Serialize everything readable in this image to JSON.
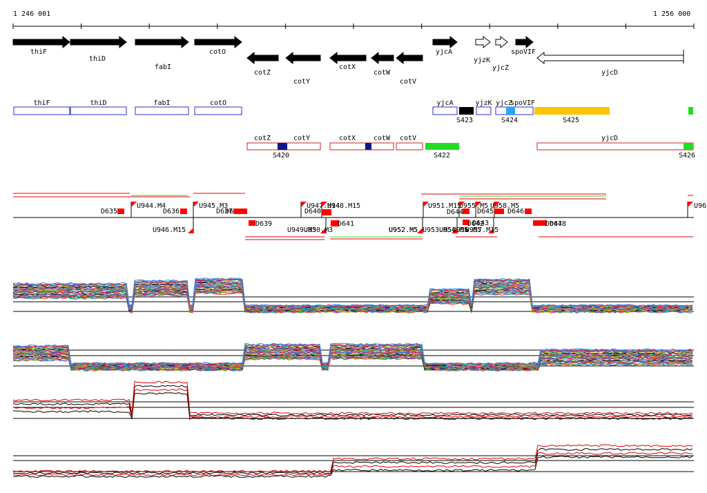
{
  "ruler": {
    "start_label": "1 246 001",
    "end_label": "1 256 000"
  },
  "colors": {
    "gene_fill": "#000000",
    "gene_outline": "#000000",
    "forward_box": "#2b2bd4",
    "reverse_box": "#cc2222",
    "segment_green": "#22dd22",
    "segment_navy": "#0a1a8c",
    "segment_orange": "#ffc400",
    "segment_cyan": "#26a6ff",
    "segment_black": "#000000",
    "feature_red": "#ff0000",
    "trace_black": "#000000",
    "trace_red": "#e00000"
  },
  "genes": [
    {
      "name": "thiF",
      "strand": "+",
      "filled": true
    },
    {
      "name": "thiD",
      "strand": "+",
      "filled": true
    },
    {
      "name": "fabI",
      "strand": "+",
      "filled": true
    },
    {
      "name": "cotO",
      "strand": "+",
      "filled": true
    },
    {
      "name": "cotZ",
      "strand": "-",
      "filled": true
    },
    {
      "name": "cotY",
      "strand": "-",
      "filled": true
    },
    {
      "name": "cotX",
      "strand": "-",
      "filled": true
    },
    {
      "name": "cotW",
      "strand": "-",
      "filled": true
    },
    {
      "name": "cotV",
      "strand": "-",
      "filled": true
    },
    {
      "name": "yjcA",
      "strand": "+",
      "filled": true
    },
    {
      "name": "yjzK",
      "strand": "+",
      "filled": false
    },
    {
      "name": "yjcZ",
      "strand": "+",
      "filled": false
    },
    {
      "name": "spoVIF",
      "strand": "+",
      "filled": true
    },
    {
      "name": "yjcD",
      "strand": "-",
      "filled": false
    }
  ],
  "forward_transcripts": [
    {
      "label": "thiF"
    },
    {
      "label": "thiD"
    },
    {
      "label": "fabI"
    },
    {
      "label": "cotO"
    },
    {
      "label": "yjcA"
    },
    {
      "label": "yjzK"
    },
    {
      "label": "yjcZ"
    },
    {
      "label": "spoVIF"
    }
  ],
  "forward_segments": [
    "S423",
    "S424",
    "S425"
  ],
  "reverse_transcripts": [
    {
      "label": "cotZ"
    },
    {
      "label": "cotY"
    },
    {
      "label": "cotX"
    },
    {
      "label": "cotW"
    },
    {
      "label": "cotV"
    },
    {
      "label": "yjcD"
    }
  ],
  "reverse_segments": [
    "S420",
    "S422",
    "S426"
  ],
  "upper_features": [
    "U944.M4",
    "U945.M3",
    "U947.M14",
    "U948.M15",
    "U951.M15",
    "U952.M5",
    "U955.M5",
    "U958.M5",
    "U96",
    "D635",
    "D636",
    "D637",
    "D638",
    "D640",
    "D644",
    "D645",
    "D646"
  ],
  "lower_features": [
    "U946.M15",
    "D639",
    "U949.M3",
    "U950.M3",
    "D641",
    "U952.M5",
    "U953.M5",
    "U954.M5",
    "U956.M5",
    "U957.M15",
    "D642",
    "D643",
    "D647",
    "D648"
  ]
}
